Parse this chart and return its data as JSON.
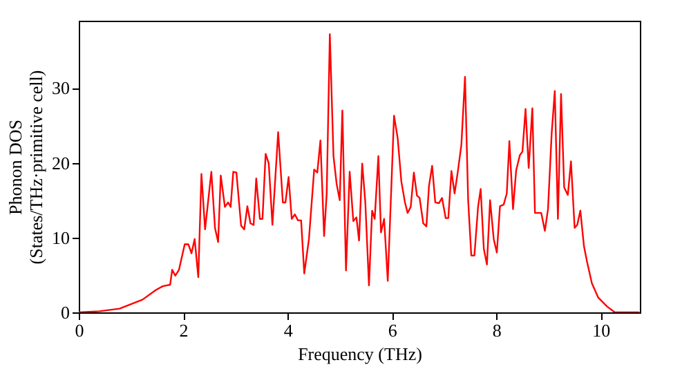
{
  "chart_data": {
    "type": "line",
    "xlabel": "Frequency (THz)",
    "ylabel": "Phonon DOS\n(States/THz·primitive cell)",
    "xlim": [
      0,
      10.75
    ],
    "ylim": [
      0,
      39
    ],
    "xticks": [
      0,
      2,
      4,
      6,
      8,
      10
    ],
    "yticks": [
      0,
      10,
      20,
      30
    ],
    "grid": false,
    "legend": false,
    "marker": "none",
    "line_style": "solid",
    "series": [
      {
        "color": "#ff0000",
        "x": [
          0,
          0.4,
          0.78,
          1.22,
          1.48,
          1.61,
          1.75,
          1.79,
          1.85,
          1.92,
          2.03,
          2.1,
          2.16,
          2.22,
          2.29,
          2.35,
          2.42,
          2.54,
          2.61,
          2.67,
          2.72,
          2.8,
          2.86,
          2.91,
          2.96,
          3.02,
          3.11,
          3.17,
          3.23,
          3.29,
          3.35,
          3.4,
          3.47,
          3.52,
          3.58,
          3.64,
          3.71,
          3.82,
          3.91,
          3.96,
          4.02,
          4.08,
          4.14,
          4.2,
          4.26,
          4.32,
          4.41,
          4.51,
          4.57,
          4.63,
          4.7,
          4.75,
          4.81,
          4.88,
          4.94,
          5.0,
          5.05,
          5.12,
          5.19,
          5.26,
          5.32,
          5.37,
          5.43,
          5.49,
          5.56,
          5.62,
          5.67,
          5.74,
          5.79,
          5.85,
          5.92,
          6.04,
          6.11,
          6.18,
          6.25,
          6.3,
          6.36,
          6.42,
          6.48,
          6.53,
          6.6,
          6.66,
          6.71,
          6.77,
          6.83,
          6.9,
          6.96,
          7.03,
          7.08,
          7.14,
          7.2,
          7.26,
          7.33,
          7.4,
          7.46,
          7.52,
          7.58,
          7.65,
          7.7,
          7.76,
          7.82,
          7.88,
          7.95,
          8.01,
          8.07,
          8.14,
          8.2,
          8.25,
          8.32,
          8.38,
          8.45,
          8.5,
          8.56,
          8.62,
          8.69,
          8.74,
          8.8,
          8.86,
          8.93,
          8.99,
          9.06,
          9.12,
          9.18,
          9.24,
          9.3,
          9.37,
          9.43,
          9.5,
          9.55,
          9.61,
          9.68,
          9.74,
          9.83,
          9.95,
          10.12,
          10.27,
          10.74
        ],
        "values": [
          0,
          0.15,
          0.5,
          1.7,
          3,
          3.5,
          3.7,
          5.7,
          4.9,
          5.7,
          9.1,
          9.1,
          7.9,
          9.8,
          4.7,
          18.5,
          11.1,
          18.8,
          11.3,
          9.4,
          18.3,
          14.1,
          14.7,
          14.1,
          18.8,
          18.7,
          11.6,
          11.1,
          14.2,
          11.9,
          11.7,
          17.9,
          12.5,
          12.5,
          21.2,
          19.9,
          11.7,
          24.1,
          14.7,
          14.7,
          18.1,
          12.5,
          13.1,
          12.3,
          12.3,
          5.2,
          9.8,
          19.1,
          18.7,
          23,
          10.2,
          15.9,
          37.2,
          20.9,
          17.2,
          15,
          27,
          5.6,
          18.8,
          12.2,
          12.7,
          9.6,
          19.9,
          14.7,
          3.6,
          13.6,
          12.5,
          20.9,
          10.7,
          12.5,
          4.2,
          26.3,
          23.3,
          17.5,
          14.7,
          13.3,
          14.1,
          18.7,
          15.6,
          15.3,
          11.9,
          11.5,
          16.9,
          19.6,
          14.7,
          14.6,
          15.3,
          12.6,
          12.6,
          18.9,
          15.9,
          18.7,
          22.4,
          31.5,
          15,
          7.6,
          7.6,
          14.1,
          16.5,
          8.5,
          6.4,
          15,
          9.8,
          8,
          14.2,
          14.4,
          15.9,
          22.9,
          13.8,
          19,
          21,
          21.5,
          27.2,
          19.3,
          27.3,
          13.3,
          13.3,
          13.3,
          10.9,
          13.8,
          23.9,
          29.6,
          12.5,
          29.2,
          16.7,
          15.7,
          20.2,
          11.3,
          11.7,
          13.6,
          8.8,
          6.7,
          3.9,
          2,
          0.8,
          0,
          0
        ]
      }
    ]
  }
}
